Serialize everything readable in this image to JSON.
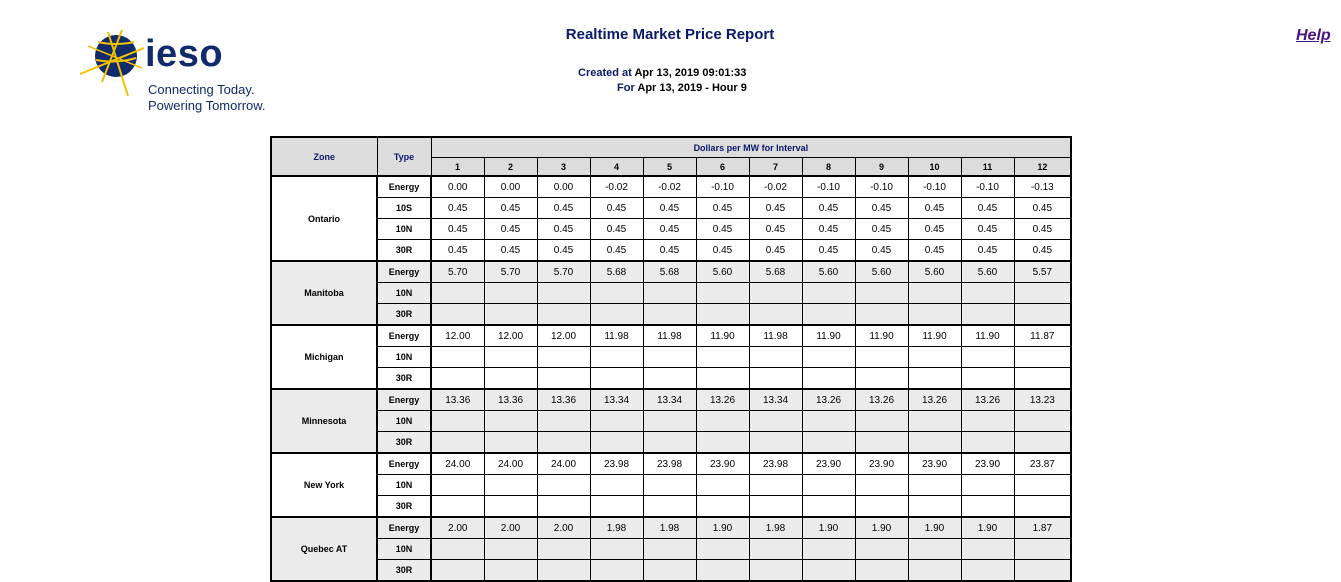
{
  "logo": {
    "brand": "ieso",
    "tagline_line1": "Connecting Today.",
    "tagline_line2": "Powering Tomorrow.",
    "colors": {
      "navy": "#102a6b",
      "gold": "#f2c200"
    }
  },
  "report": {
    "title": "Realtime Market Price Report",
    "created_label": "Created at",
    "created_value": "Apr 13, 2019 09:01:33",
    "for_label": "For",
    "for_value": "Apr 13, 2019 - Hour 9"
  },
  "help_link": "Help",
  "table": {
    "zone_header": "Zone",
    "type_header": "Type",
    "group_header": "Dollars per MW for Interval",
    "intervals": [
      "1",
      "2",
      "3",
      "4",
      "5",
      "6",
      "7",
      "8",
      "9",
      "10",
      "11",
      "12"
    ],
    "zones": [
      {
        "name": "Ontario",
        "rows": [
          {
            "type": "Energy",
            "values": [
              "0.00",
              "0.00",
              "0.00",
              "-0.02",
              "-0.02",
              "-0.10",
              "-0.02",
              "-0.10",
              "-0.10",
              "-0.10",
              "-0.10",
              "-0.13"
            ]
          },
          {
            "type": "10S",
            "values": [
              "0.45",
              "0.45",
              "0.45",
              "0.45",
              "0.45",
              "0.45",
              "0.45",
              "0.45",
              "0.45",
              "0.45",
              "0.45",
              "0.45"
            ]
          },
          {
            "type": "10N",
            "values": [
              "0.45",
              "0.45",
              "0.45",
              "0.45",
              "0.45",
              "0.45",
              "0.45",
              "0.45",
              "0.45",
              "0.45",
              "0.45",
              "0.45"
            ]
          },
          {
            "type": "30R",
            "values": [
              "0.45",
              "0.45",
              "0.45",
              "0.45",
              "0.45",
              "0.45",
              "0.45",
              "0.45",
              "0.45",
              "0.45",
              "0.45",
              "0.45"
            ]
          }
        ]
      },
      {
        "name": "Manitoba",
        "rows": [
          {
            "type": "Energy",
            "values": [
              "5.70",
              "5.70",
              "5.70",
              "5.68",
              "5.68",
              "5.60",
              "5.68",
              "5.60",
              "5.60",
              "5.60",
              "5.60",
              "5.57"
            ]
          },
          {
            "type": "10N",
            "values": [
              "",
              "",
              "",
              "",
              "",
              "",
              "",
              "",
              "",
              "",
              "",
              ""
            ]
          },
          {
            "type": "30R",
            "values": [
              "",
              "",
              "",
              "",
              "",
              "",
              "",
              "",
              "",
              "",
              "",
              ""
            ]
          }
        ]
      },
      {
        "name": "Michigan",
        "rows": [
          {
            "type": "Energy",
            "values": [
              "12.00",
              "12.00",
              "12.00",
              "11.98",
              "11.98",
              "11.90",
              "11.98",
              "11.90",
              "11.90",
              "11.90",
              "11.90",
              "11.87"
            ]
          },
          {
            "type": "10N",
            "values": [
              "",
              "",
              "",
              "",
              "",
              "",
              "",
              "",
              "",
              "",
              "",
              ""
            ]
          },
          {
            "type": "30R",
            "values": [
              "",
              "",
              "",
              "",
              "",
              "",
              "",
              "",
              "",
              "",
              "",
              ""
            ]
          }
        ]
      },
      {
        "name": "Minnesota",
        "rows": [
          {
            "type": "Energy",
            "values": [
              "13.36",
              "13.36",
              "13.36",
              "13.34",
              "13.34",
              "13.26",
              "13.34",
              "13.26",
              "13.26",
              "13.26",
              "13.26",
              "13.23"
            ]
          },
          {
            "type": "10N",
            "values": [
              "",
              "",
              "",
              "",
              "",
              "",
              "",
              "",
              "",
              "",
              "",
              ""
            ]
          },
          {
            "type": "30R",
            "values": [
              "",
              "",
              "",
              "",
              "",
              "",
              "",
              "",
              "",
              "",
              "",
              ""
            ]
          }
        ]
      },
      {
        "name": "New York",
        "rows": [
          {
            "type": "Energy",
            "values": [
              "24.00",
              "24.00",
              "24.00",
              "23.98",
              "23.98",
              "23.90",
              "23.98",
              "23.90",
              "23.90",
              "23.90",
              "23.90",
              "23.87"
            ]
          },
          {
            "type": "10N",
            "values": [
              "",
              "",
              "",
              "",
              "",
              "",
              "",
              "",
              "",
              "",
              "",
              ""
            ]
          },
          {
            "type": "30R",
            "values": [
              "",
              "",
              "",
              "",
              "",
              "",
              "",
              "",
              "",
              "",
              "",
              ""
            ]
          }
        ]
      },
      {
        "name": "Quebec AT",
        "rows": [
          {
            "type": "Energy",
            "values": [
              "2.00",
              "2.00",
              "2.00",
              "1.98",
              "1.98",
              "1.90",
              "1.98",
              "1.90",
              "1.90",
              "1.90",
              "1.90",
              "1.87"
            ]
          },
          {
            "type": "10N",
            "values": [
              "",
              "",
              "",
              "",
              "",
              "",
              "",
              "",
              "",
              "",
              "",
              ""
            ]
          },
          {
            "type": "30R",
            "values": [
              "",
              "",
              "",
              "",
              "",
              "",
              "",
              "",
              "",
              "",
              "",
              ""
            ]
          }
        ]
      }
    ]
  }
}
